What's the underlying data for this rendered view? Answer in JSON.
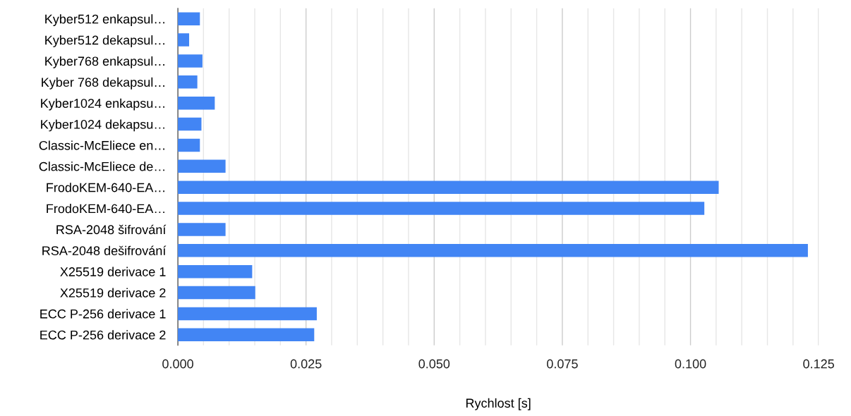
{
  "chart_data": {
    "type": "bar",
    "orientation": "horizontal",
    "xlabel": "Rychlost [s]",
    "categories": [
      "Kyber512 enkapsul…",
      "Kyber512 dekapsul…",
      "Kyber768 enkapsul…",
      "Kyber 768 dekapsul…",
      "Kyber1024 enkapsu…",
      "Kyber1024 dekapsu…",
      "Classic-McEliece en…",
      "Classic-McEliece de…",
      "FrodoKEM-640-EA…",
      "FrodoKEM-640-EA…",
      "RSA-2048 šifrování",
      "RSA-2048 dešifrování",
      "X25519 derivace 1",
      "X25519 derivace 2",
      "ECC P-256 derivace 1",
      "ECC P-256 derivace 2"
    ],
    "values": [
      0.0043,
      0.0022,
      0.0048,
      0.0038,
      0.0072,
      0.0046,
      0.0043,
      0.0093,
      0.1055,
      0.1027,
      0.0093,
      0.1229,
      0.0145,
      0.0151,
      0.0271,
      0.0266
    ],
    "color": "#4285f4",
    "xlim": [
      0,
      0.125
    ],
    "xticks": [
      {
        "value": 0,
        "label": "0.000"
      },
      {
        "value": 0.005,
        "label": null
      },
      {
        "value": 0.01,
        "label": null
      },
      {
        "value": 0.015,
        "label": null
      },
      {
        "value": 0.02,
        "label": null
      },
      {
        "value": 0.025,
        "label": "0.025"
      },
      {
        "value": 0.03,
        "label": null
      },
      {
        "value": 0.035,
        "label": null
      },
      {
        "value": 0.04,
        "label": null
      },
      {
        "value": 0.045,
        "label": null
      },
      {
        "value": 0.05,
        "label": "0.050"
      },
      {
        "value": 0.055,
        "label": null
      },
      {
        "value": 0.06,
        "label": null
      },
      {
        "value": 0.065,
        "label": null
      },
      {
        "value": 0.07,
        "label": null
      },
      {
        "value": 0.075,
        "label": "0.075"
      },
      {
        "value": 0.08,
        "label": null
      },
      {
        "value": 0.085,
        "label": null
      },
      {
        "value": 0.09,
        "label": null
      },
      {
        "value": 0.095,
        "label": null
      },
      {
        "value": 0.1,
        "label": "0.100"
      },
      {
        "value": 0.105,
        "label": null
      },
      {
        "value": 0.11,
        "label": null
      },
      {
        "value": 0.115,
        "label": null
      },
      {
        "value": 0.12,
        "label": null
      },
      {
        "value": 0.125,
        "label": "0.125"
      }
    ],
    "grid": "x",
    "legend": false
  }
}
